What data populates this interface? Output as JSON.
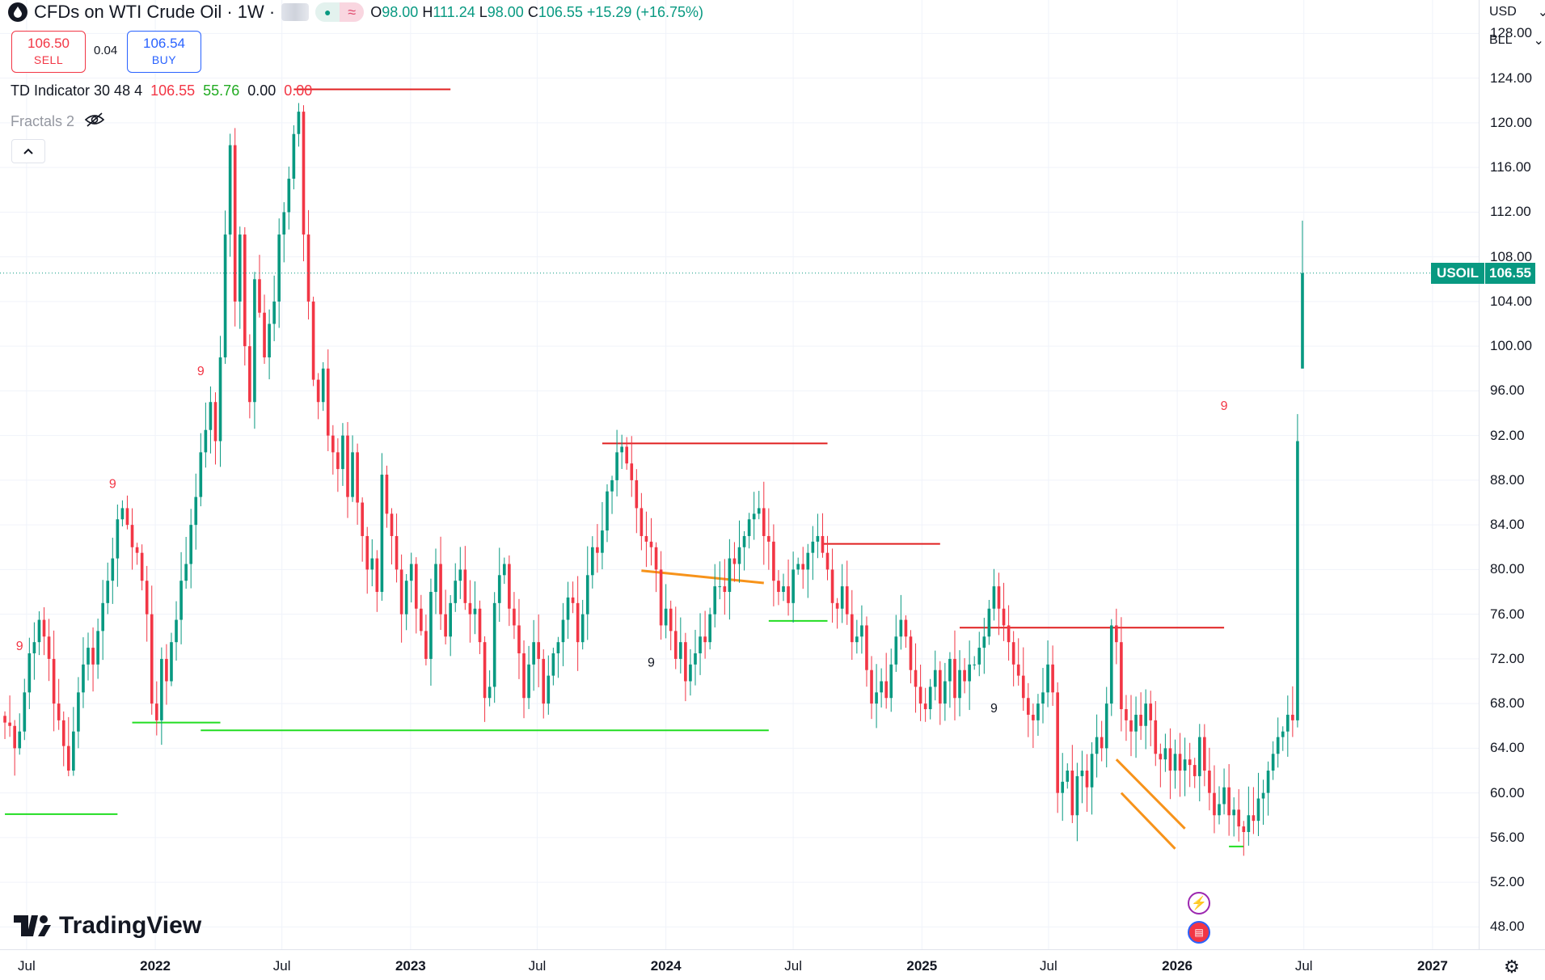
{
  "header": {
    "symbol_title": "CFDs on WTI Crude Oil · 1W ·",
    "ohlc": [
      {
        "k": "O",
        "v": "98.00"
      },
      {
        "k": "H",
        "v": "111.24"
      },
      {
        "k": "L",
        "v": "98.00"
      },
      {
        "k": "C",
        "v": "106.55"
      }
    ],
    "change": "+15.29 (+16.75%)"
  },
  "trade": {
    "sell_price": "106.50",
    "sell_label": "SELL",
    "spread": "0.04",
    "buy_price": "106.54",
    "buy_label": "BUY"
  },
  "indicators": {
    "td_name": "TD Indicator 30 48 4",
    "td_values": [
      "106.55",
      "55.76",
      "0.00",
      "0.00"
    ],
    "fractals_name": "Fractals 2"
  },
  "price_axis": {
    "currency": "USD",
    "unit": "BLL",
    "ticks": [
      "128.00",
      "124.00",
      "120.00",
      "116.00",
      "112.00",
      "108.00",
      "104.00",
      "100.00",
      "96.00",
      "92.00",
      "88.00",
      "84.00",
      "80.00",
      "76.00",
      "72.00",
      "68.00",
      "64.00",
      "60.00",
      "56.00",
      "52.00",
      "48.00"
    ],
    "last_label": "USOIL",
    "last_price": "106.55"
  },
  "time_axis": {
    "ticks": [
      {
        "label": "Jul",
        "bold": false
      },
      {
        "label": "2022",
        "bold": true
      },
      {
        "label": "Jul",
        "bold": false
      },
      {
        "label": "2023",
        "bold": true
      },
      {
        "label": "Jul",
        "bold": false
      },
      {
        "label": "2024",
        "bold": true
      },
      {
        "label": "Jul",
        "bold": false
      },
      {
        "label": "2025",
        "bold": true
      },
      {
        "label": "Jul",
        "bold": false
      },
      {
        "label": "2026",
        "bold": true
      },
      {
        "label": "Jul",
        "bold": false
      },
      {
        "label": "2027",
        "bold": true
      }
    ]
  },
  "branding": {
    "logo_text": "TradingView"
  },
  "colors": {
    "up": "#089981",
    "down": "#f23645",
    "support": "#22dd22",
    "resistance": "#e02020",
    "trendline": "#f7931a",
    "accent": "#2962ff"
  },
  "chart_data": {
    "type": "candlestick",
    "symbol": "USOIL",
    "interval": "1W",
    "ylim": [
      46,
      131
    ],
    "y_ticks": [
      48,
      52,
      56,
      60,
      64,
      68,
      72,
      76,
      80,
      84,
      88,
      92,
      96,
      100,
      104,
      108,
      112,
      116,
      120,
      124,
      128
    ],
    "x_range": [
      "2021-05-24",
      "2027-03-08"
    ],
    "x_ticks": [
      "2021-07-01",
      "2022-01-01",
      "2022-07-01",
      "2023-01-01",
      "2023-07-01",
      "2024-01-01",
      "2024-07-01",
      "2025-01-01",
      "2025-07-01",
      "2026-01-01",
      "2026-07-01",
      "2027-01-01"
    ],
    "grid": true,
    "closes": [
      66.3,
      66.0,
      64.0,
      65.5,
      69.0,
      72.5,
      73.5,
      75.5,
      74.0,
      72.0,
      68.0,
      66.5,
      64.2,
      62.0,
      65.5,
      69.0,
      71.5,
      73.0,
      71.5,
      74.5,
      77.0,
      79.0,
      81.0,
      84.5,
      85.5,
      84.0,
      82.0,
      81.5,
      79.0,
      76.0,
      68.0,
      66.5,
      72.0,
      70.0,
      73.5,
      75.5,
      79.0,
      80.5,
      84.0,
      86.5,
      90.5,
      92.5,
      95.0,
      91.5,
      99.0,
      110.0,
      118.0,
      104.0,
      110.0,
      100.0,
      95.0,
      106.0,
      103.0,
      99.0,
      102.0,
      104.0,
      110.0,
      112.0,
      115.0,
      119.0,
      121.0,
      110.0,
      104.0,
      97.0,
      95.0,
      98.0,
      92.0,
      90.5,
      89.0,
      92.0,
      86.5,
      90.5,
      86.0,
      83.0,
      80.0,
      81.0,
      78.0,
      88.5,
      85.0,
      83.0,
      80.0,
      76.0,
      79.0,
      80.5,
      76.5,
      74.5,
      72.0,
      78.0,
      80.5,
      76.0,
      74.0,
      77.0,
      79.0,
      80.0,
      77.0,
      76.0,
      76.5,
      73.5,
      68.5,
      69.5,
      77.0,
      79.5,
      80.5,
      76.5,
      75.0,
      72.5,
      68.5,
      71.5,
      73.5,
      72.0,
      68.0,
      70.5,
      72.5,
      73.5,
      75.5,
      77.5,
      77.0,
      73.5,
      76.0,
      79.5,
      82.0,
      81.5,
      83.5,
      87.0,
      88.0,
      90.5,
      91.0,
      89.5,
      88.0,
      85.5,
      83.0,
      82.5,
      82.0,
      80.0,
      75.0,
      76.5,
      74.5,
      72.0,
      73.5,
      70.0,
      71.5,
      72.5,
      74.0,
      73.5,
      76.0,
      78.5,
      78.5,
      78.0,
      81.0,
      80.5,
      82.0,
      83.0,
      84.5,
      85.0,
      85.5,
      83.0,
      82.5,
      79.0,
      78.0,
      78.5,
      77.0,
      80.0,
      80.5,
      80.0,
      81.5,
      82.5,
      83.0,
      81.5,
      80.0,
      77.0,
      76.5,
      78.5,
      76.0,
      73.5,
      74.0,
      75.0,
      71.0,
      68.0,
      69.0,
      70.0,
      68.5,
      71.5,
      74.0,
      75.5,
      74.0,
      71.0,
      69.5,
      68.0,
      67.5,
      69.5,
      71.0,
      68.0,
      70.0,
      72.0,
      68.5,
      71.0,
      70.0,
      71.5,
      71.5,
      73.0,
      74.0,
      76.5,
      78.5,
      76.5,
      75.0,
      73.5,
      71.5,
      70.5,
      68.5,
      67.0,
      66.5,
      68.0,
      69.0,
      71.5,
      69.0,
      60.0,
      61.0,
      62.0,
      58.0,
      61.5,
      62.0,
      60.5,
      63.5,
      65.0,
      64.0,
      68.0,
      75.0,
      73.5,
      67.5,
      66.5,
      65.5,
      67.0,
      66.0,
      68.0,
      66.5,
      63.5,
      63.0,
      64.0,
      62.0,
      63.5,
      62.0,
      63.0,
      62.5,
      61.5,
      65.0,
      62.0,
      60.0,
      58.0,
      59.0,
      60.5,
      58.0,
      58.5,
      57.0,
      56.5,
      58.0,
      57.5,
      59.5,
      60.0,
      62.0,
      63.5,
      65.0,
      65.5,
      67.0,
      66.5,
      91.5,
      106.55
    ],
    "last_ohlc": {
      "open": 98.0,
      "high": 111.24,
      "low": 98.0,
      "close": 106.55
    },
    "resistance_lines": [
      {
        "from": "2022-07-18",
        "to": "2023-02-27",
        "price": 123.0
      },
      {
        "from": "2023-10-02",
        "to": "2024-08-19",
        "price": 91.3
      },
      {
        "from": "2024-08-12",
        "to": "2025-01-27",
        "price": 82.3
      },
      {
        "from": "2025-02-24",
        "to": "2026-03-09",
        "price": 74.8
      }
    ],
    "support_lines": [
      {
        "from": "2021-05-31",
        "to": "2021-11-08",
        "price": 58.1
      },
      {
        "from": "2021-11-29",
        "to": "2022-04-04",
        "price": 66.3
      },
      {
        "from": "2022-03-07",
        "to": "2024-05-27",
        "price": 65.6
      },
      {
        "from": "2024-05-27",
        "to": "2024-08-19",
        "price": 75.4
      },
      {
        "from": "2026-03-16",
        "to": "2026-04-06",
        "price": 55.2
      }
    ],
    "trend_lines": [
      {
        "from": [
          "2023-11-27",
          79.9
        ],
        "to": [
          "2024-05-20",
          78.8
        ]
      },
      {
        "from": [
          "2025-10-06",
          63.0
        ],
        "to": [
          "2026-01-12",
          56.8
        ]
      },
      {
        "from": [
          "2025-10-13",
          60.0
        ],
        "to": [
          "2025-12-29",
          55.0
        ]
      }
    ],
    "td_nine_labels": [
      {
        "date": "2021-06-21",
        "price": 72.8,
        "color": "red"
      },
      {
        "date": "2021-11-01",
        "price": 87.3,
        "color": "red"
      },
      {
        "date": "2022-03-07",
        "price": 97.4,
        "color": "red"
      },
      {
        "date": "2023-12-11",
        "price": 71.3,
        "color": "black"
      },
      {
        "date": "2025-04-14",
        "price": 67.2,
        "color": "black"
      },
      {
        "date": "2026-03-09",
        "price": 94.3,
        "color": "red"
      }
    ]
  }
}
